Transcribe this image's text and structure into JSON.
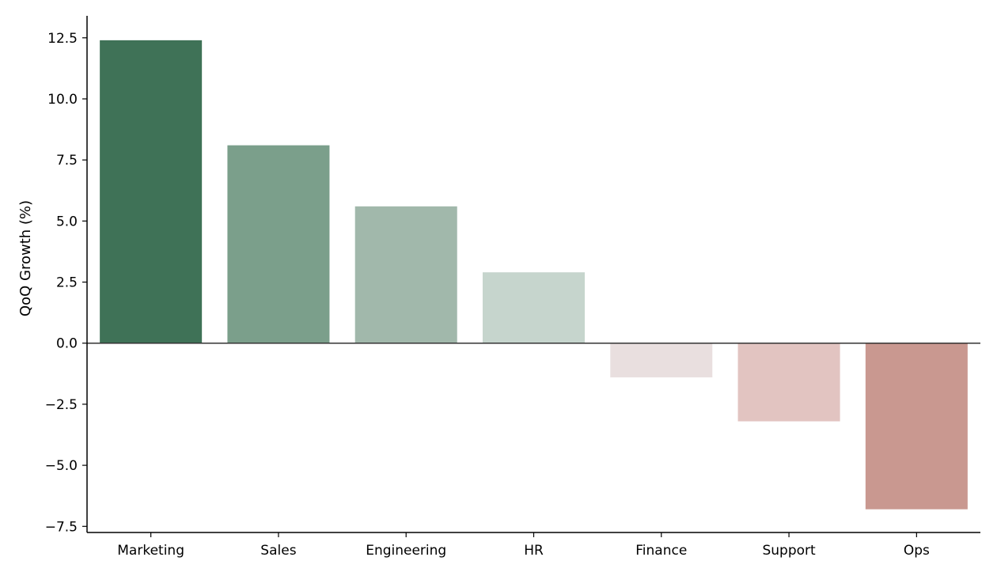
{
  "chart_data": {
    "type": "bar",
    "title": "",
    "xlabel": "",
    "ylabel": "QoQ Growth (%)",
    "categories": [
      "Marketing",
      "Sales",
      "Engineering",
      "HR",
      "Finance",
      "Support",
      "Ops"
    ],
    "values": [
      12.4,
      8.1,
      5.6,
      2.9,
      -1.4,
      -3.2,
      -6.8
    ],
    "colors": [
      "#3f7257",
      "#7b9f8b",
      "#a1b8ab",
      "#c6d5cd",
      "#e9dfdf",
      "#e2c4c1",
      "#c99890"
    ],
    "ylim": [
      -7.75,
      13.4
    ],
    "yticks": [
      -7.5,
      -5.0,
      -2.5,
      0.0,
      2.5,
      5.0,
      7.5,
      10.0,
      12.5
    ],
    "ytick_labels": [
      "−7.5",
      "−5.0",
      "−2.5",
      "0.0",
      "2.5",
      "5.0",
      "7.5",
      "10.0",
      "12.5"
    ],
    "grid": false,
    "zero_line": true
  }
}
